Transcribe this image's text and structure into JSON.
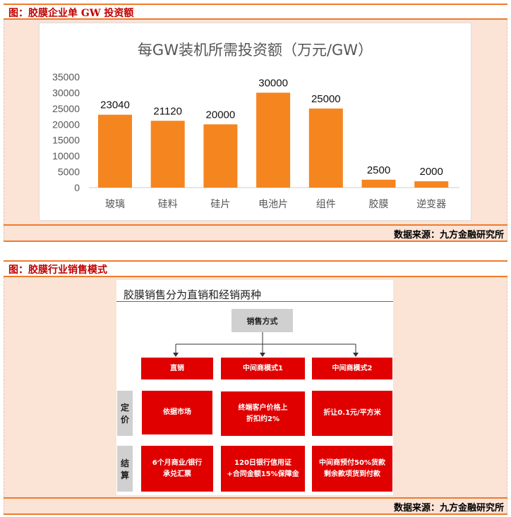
{
  "section1": {
    "title": "图：胶膜企业单 GW 投资额",
    "source": "数据来源：九方金融研究所"
  },
  "section2": {
    "title": "图：胶膜行业销售模式",
    "source": "数据来源：九方金融研究所"
  },
  "chart_data": {
    "type": "bar",
    "title": "每GW装机所需投资额（万元/GW）",
    "categories": [
      "玻璃",
      "硅料",
      "硅片",
      "电池片",
      "组件",
      "胶膜",
      "逆变器"
    ],
    "values": [
      23040,
      21120,
      20000,
      30000,
      25000,
      2500,
      2000
    ],
    "data_labels": [
      "23040",
      "21120",
      "20000",
      "30000",
      "25000",
      "2500",
      "2000"
    ],
    "yticks": [
      "0",
      "5000",
      "10000",
      "15000",
      "20000",
      "25000",
      "30000",
      "35000"
    ],
    "ylim": [
      0,
      35000
    ],
    "grid": false,
    "color": "#f5851f"
  },
  "diagram": {
    "title": "胶膜销售分为直销和经销两种",
    "root": "销售方式",
    "modes": [
      "直销",
      "中间商模式1",
      "中间商模式2"
    ],
    "row_labels": [
      "定\n价",
      "结\n算"
    ],
    "pricing": [
      "依据市场",
      "终端客户价格上\n折扣约2%",
      "折让0.1元/平方米"
    ],
    "settlement": [
      "6个月商业/银行\n承兑汇票",
      "120日银行信用证\n+合同金额15%保障金",
      "中间商预付50%货款\n剩余款项货到付款"
    ]
  }
}
